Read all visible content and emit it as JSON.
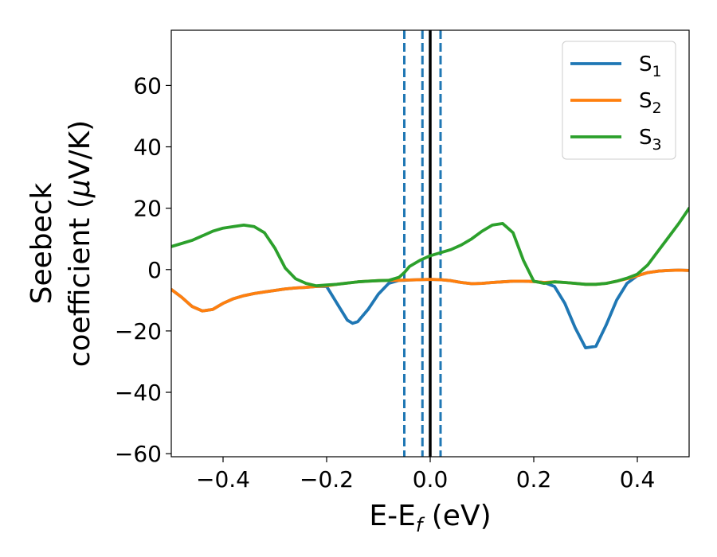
{
  "chart_data": {
    "type": "line",
    "xlabel": {
      "main": "E-E",
      "sub": "f",
      "unit": " (eV)"
    },
    "ylabel": {
      "line1": "Seebeck",
      "line2": "coefficient  (",
      "mu": "μ",
      "line2_end": "V/K)"
    },
    "xlim": [
      -0.5,
      0.5
    ],
    "ylim": [
      -61,
      78
    ],
    "xticks": [
      -0.4,
      -0.2,
      0.0,
      0.2,
      0.4
    ],
    "xtick_labels": [
      "−0.4",
      "−0.2",
      "0.0",
      "0.2",
      "0.4"
    ],
    "yticks": [
      -60,
      -40,
      -20,
      0,
      20,
      40,
      60
    ],
    "ytick_labels": [
      "−60",
      "−40",
      "−20",
      "0",
      "20",
      "40",
      "60"
    ],
    "legend_position": "top-right",
    "vlines": [
      {
        "x": 0.0,
        "style": "solid",
        "color": "#000000"
      },
      {
        "x": -0.05,
        "style": "dashed",
        "color": "#1f77b4"
      },
      {
        "x": -0.015,
        "style": "dashed",
        "color": "#1f77b4"
      },
      {
        "x": 0.02,
        "style": "dashed",
        "color": "#1f77b4"
      }
    ],
    "x": [
      -0.5,
      -0.48,
      -0.46,
      -0.44,
      -0.42,
      -0.4,
      -0.38,
      -0.36,
      -0.34,
      -0.32,
      -0.3,
      -0.28,
      -0.26,
      -0.24,
      -0.22,
      -0.2,
      -0.18,
      -0.16,
      -0.15,
      -0.14,
      -0.12,
      -0.1,
      -0.08,
      -0.06,
      -0.05,
      -0.04,
      -0.02,
      0.0,
      0.02,
      0.04,
      0.06,
      0.08,
      0.1,
      0.12,
      0.14,
      0.16,
      0.18,
      0.2,
      0.22,
      0.24,
      0.26,
      0.28,
      0.3,
      0.32,
      0.34,
      0.36,
      0.38,
      0.4,
      0.42,
      0.44,
      0.46,
      0.48,
      0.5
    ],
    "series": [
      {
        "name": "S",
        "sub": "1",
        "color": "#1f77b4",
        "values": [
          -6.5,
          -9,
          -12,
          -13.5,
          -13,
          -11,
          -9.5,
          -8.5,
          -7.8,
          -7.3,
          -6.8,
          -6.3,
          -6,
          -5.8,
          -5.5,
          -5.5,
          -11,
          -16.5,
          -17.5,
          -17,
          -13,
          -8,
          -4.5,
          -3.5,
          -3.5,
          -3.4,
          -3.3,
          -3.2,
          -3.3,
          -3.6,
          -4.2,
          -4.6,
          -4.5,
          -4.2,
          -4,
          -3.8,
          -3.8,
          -3.9,
          -4.2,
          -5.5,
          -11,
          -19,
          -25.5,
          -25,
          -18,
          -10,
          -4.5,
          -2,
          -1,
          -0.5,
          -0.3,
          -0.2,
          -0.3
        ]
      },
      {
        "name": "S",
        "sub": "2",
        "color": "#ff7f0e",
        "values": [
          -6.5,
          -9,
          -12,
          -13.5,
          -13,
          -11,
          -9.5,
          -8.5,
          -7.8,
          -7.3,
          -6.8,
          -6.3,
          -6,
          -5.8,
          -5.5,
          -5.3,
          -4.8,
          -4.4,
          -4.2,
          -4,
          -3.8,
          -3.6,
          -3.5,
          -3.5,
          -3.4,
          -3.4,
          -3.3,
          -3.2,
          -3.3,
          -3.6,
          -4.2,
          -4.6,
          -4.5,
          -4.2,
          -4,
          -3.8,
          -3.8,
          -3.9,
          -4.2,
          -4,
          -4.2,
          -4.5,
          -4.8,
          -4.8,
          -4.5,
          -3.8,
          -3,
          -2,
          -1,
          -0.5,
          -0.3,
          -0.2,
          -0.3
        ]
      },
      {
        "name": "S",
        "sub": "3",
        "color": "#2ca02c",
        "values": [
          7.5,
          8.5,
          9.5,
          11,
          12.5,
          13.5,
          14,
          14.5,
          14,
          12,
          7,
          0.5,
          -3,
          -4.5,
          -5.3,
          -5,
          -4.8,
          -4.4,
          -4.2,
          -4,
          -3.8,
          -3.6,
          -3.5,
          -2.5,
          -1,
          1,
          3,
          4.5,
          5.5,
          6.5,
          8,
          10,
          12.5,
          14.5,
          15,
          12,
          3,
          -3.8,
          -4.5,
          -4,
          -4.2,
          -4.5,
          -4.8,
          -4.8,
          -4.5,
          -3.8,
          -2.8,
          -1.5,
          1.5,
          6,
          10.5,
          15,
          20
        ]
      }
    ]
  }
}
